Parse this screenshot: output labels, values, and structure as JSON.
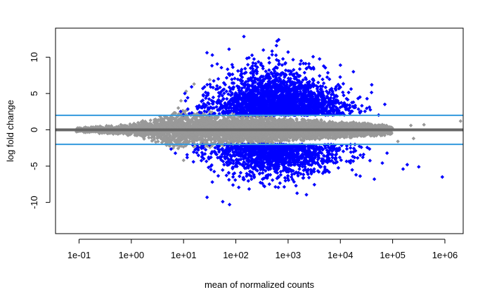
{
  "chart_data": {
    "type": "scatter",
    "title": "",
    "xlabel": "mean of normalized counts",
    "ylabel": "log fold change",
    "xscale": "log10",
    "xlim_log10": [
      -1.45,
      6.35
    ],
    "ylim": [
      -14.3,
      14
    ],
    "x_ticks": [
      0.1,
      1,
      10,
      100,
      1000,
      10000,
      100000,
      1000000
    ],
    "x_tick_labels": [
      "1e-01",
      "1e+00",
      "1e+01",
      "1e+02",
      "1e+03",
      "1e+04",
      "1e+05",
      "1e+06"
    ],
    "y_ticks": [
      -10,
      -5,
      0,
      5,
      10
    ],
    "y_tick_labels": [
      "-10",
      "-5",
      "0",
      "5",
      "10"
    ],
    "grid": false,
    "legend": "none",
    "colors": {
      "not_significant": "#999999",
      "significant": "#0000ff",
      "zero_line": "#666666",
      "threshold_lines": "#3399dd"
    },
    "reference_lines": [
      {
        "y": 0,
        "color": "#666666"
      },
      {
        "y": 2,
        "color": "#3399dd"
      },
      {
        "y": -2,
        "color": "#3399dd"
      }
    ],
    "series": [
      {
        "role": "not_significant",
        "color": "#999999",
        "points_shown_approx": 6000,
        "band_by_log10_mean": [
          {
            "log10_mean": -1.0,
            "lfc_spread": 0.3
          },
          {
            "log10_mean": 0.0,
            "lfc_spread": 0.8
          },
          {
            "log10_mean": 1.0,
            "lfc_spread": 2.8
          },
          {
            "log10_mean": 2.0,
            "lfc_spread": 2.3
          },
          {
            "log10_mean": 3.0,
            "lfc_spread": 1.7
          },
          {
            "log10_mean": 4.0,
            "lfc_spread": 1.2
          },
          {
            "log10_mean": 5.0,
            "lfc_spread": 0.7
          }
        ],
        "outlier_points": [
          [
            6.3,
            1.2
          ],
          [
            6.4,
            -0.2
          ],
          [
            5.4,
            -1.2
          ],
          [
            5.1,
            -1.6
          ],
          [
            0.95,
            4.0
          ],
          [
            1.05,
            5.3
          ],
          [
            1.2,
            6.3
          ],
          [
            1.5,
            6.9
          ],
          [
            0.9,
            3.0
          ],
          [
            0.8,
            -2.5
          ],
          [
            1.0,
            -4.2
          ],
          [
            5.35,
            0.6
          ],
          [
            5.6,
            0.7
          ]
        ]
      },
      {
        "role": "significant",
        "color": "#0000ff",
        "points_shown_approx": 3500,
        "density_center_log10_mean": 2.8,
        "extreme_points": [
          [
            2.82,
            12.4
          ],
          [
            1.87,
            11.1
          ],
          [
            1.55,
            10.3
          ],
          [
            3.0,
            10.7
          ],
          [
            3.25,
            9.5
          ],
          [
            2.95,
            9.2
          ],
          [
            4.0,
            8.9
          ],
          [
            4.25,
            8.0
          ],
          [
            4.6,
            6.2
          ],
          [
            4.85,
            3.5
          ],
          [
            1.45,
            -9.3
          ],
          [
            1.75,
            -9.9
          ],
          [
            1.88,
            -10.3
          ],
          [
            3.15,
            -7.7
          ],
          [
            2.55,
            -7.8
          ],
          [
            4.3,
            -6.2
          ],
          [
            4.65,
            -6.8
          ],
          [
            5.2,
            -5.4
          ],
          [
            5.28,
            -4.8
          ],
          [
            5.5,
            -5.1
          ],
          [
            5.95,
            -6.5
          ],
          [
            1.55,
            -7.2
          ],
          [
            2.3,
            -6.8
          ]
        ]
      }
    ]
  }
}
